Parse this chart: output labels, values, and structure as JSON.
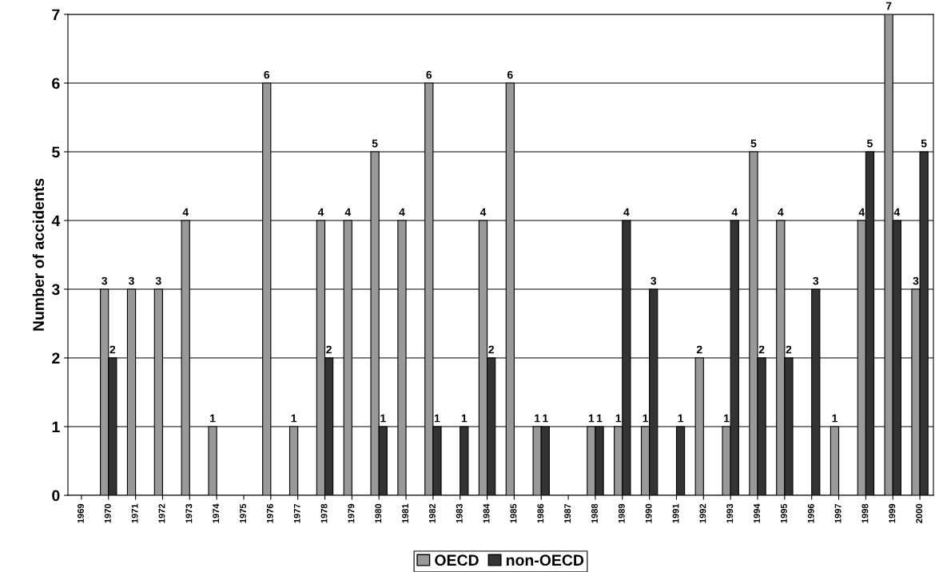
{
  "chart_data": {
    "type": "bar",
    "ylabel": "Number of accidents",
    "categories": [
      "1969",
      "1970",
      "1971",
      "1972",
      "1973",
      "1974",
      "1975",
      "1976",
      "1977",
      "1978",
      "1979",
      "1980",
      "1981",
      "1982",
      "1983",
      "1984",
      "1985",
      "1986",
      "1987",
      "1988",
      "1989",
      "1990",
      "1991",
      "1992",
      "1993",
      "1994",
      "1995",
      "1996",
      "1997",
      "1998",
      "1999",
      "2000"
    ],
    "series": [
      {
        "name": "OECD",
        "color": "#999999",
        "values": [
          null,
          3,
          3,
          3,
          4,
          1,
          null,
          6,
          1,
          4,
          4,
          5,
          4,
          6,
          null,
          4,
          6,
          1,
          null,
          1,
          1,
          1,
          null,
          2,
          1,
          5,
          4,
          null,
          1,
          4,
          7,
          3
        ]
      },
      {
        "name": "non-OECD",
        "color": "#333333",
        "values": [
          null,
          2,
          null,
          null,
          null,
          null,
          null,
          null,
          null,
          2,
          null,
          1,
          null,
          1,
          1,
          2,
          null,
          1,
          null,
          1,
          4,
          3,
          1,
          null,
          4,
          2,
          2,
          3,
          null,
          5,
          4,
          5
        ]
      }
    ],
    "ylim": [
      0,
      7
    ],
    "yticks": [
      0,
      1,
      2,
      3,
      4,
      5,
      6,
      7
    ],
    "grid": "y",
    "legend": "bottom",
    "data_labels": true
  }
}
